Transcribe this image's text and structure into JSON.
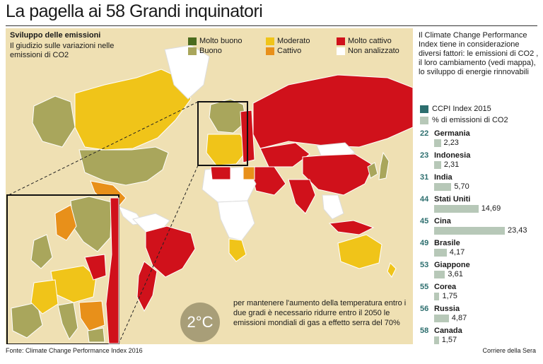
{
  "title": "La pagella ai 58 Grandi inquinatori",
  "map": {
    "heading": "Sviluppo delle emissioni",
    "description": "Il giudizio sulle variazioni nelle emissioni di CO2",
    "legend": [
      {
        "label": "Molto buono",
        "color": "#4a6b1e"
      },
      {
        "label": "Buono",
        "color": "#a9a65c"
      },
      {
        "label": "Moderato",
        "color": "#f0c419"
      },
      {
        "label": "Cattivo",
        "color": "#e8901a"
      },
      {
        "label": "Molto cattivo",
        "color": "#d0111b"
      },
      {
        "label": "Non analizzato",
        "color": "#ffffff"
      }
    ],
    "base_color": "#efe0b3"
  },
  "callout": {
    "value": "2°C",
    "text": "per mantenere l'aumento della temperatura entro i due gradi è necessario ridurre entro il 2050 le emissioni mondiali di gas a effetto serra del 70%"
  },
  "sidebar": {
    "intro": "Il Climate Change Performance Index tiene in considerazione diversi fattori: le emissioni di CO2 , il loro cambiamento (vedi mappa), lo sviluppo di energie rinnovabili",
    "legend": [
      {
        "label": "CCPI Index 2015",
        "color": "#2c6e6e"
      },
      {
        "label": "% di emissioni di CO2",
        "color": "#b7c8b8"
      }
    ],
    "max_share": 23.43,
    "ranking": [
      {
        "rank": "22",
        "country": "Germania",
        "share": 2.23,
        "share_label": "2,23"
      },
      {
        "rank": "23",
        "country": "Indonesia",
        "share": 2.31,
        "share_label": "2,31"
      },
      {
        "rank": "31",
        "country": "India",
        "share": 5.7,
        "share_label": "5,70"
      },
      {
        "rank": "44",
        "country": "Stati Uniti",
        "share": 14.69,
        "share_label": "14,69"
      },
      {
        "rank": "45",
        "country": "Cina",
        "share": 23.43,
        "share_label": "23,43"
      },
      {
        "rank": "49",
        "country": "Brasile",
        "share": 4.17,
        "share_label": "4,17"
      },
      {
        "rank": "53",
        "country": "Giappone",
        "share": 3.61,
        "share_label": "3,61"
      },
      {
        "rank": "55",
        "country": "Corea",
        "share": 1.75,
        "share_label": "1,75"
      },
      {
        "rank": "56",
        "country": "Russia",
        "share": 4.87,
        "share_label": "4,87"
      },
      {
        "rank": "58",
        "country": "Canada",
        "share": 1.57,
        "share_label": "1,57"
      }
    ]
  },
  "footer": {
    "source": "Fonte: Climate Change Performance Index 2016",
    "credit": "Corriere della Sera"
  }
}
